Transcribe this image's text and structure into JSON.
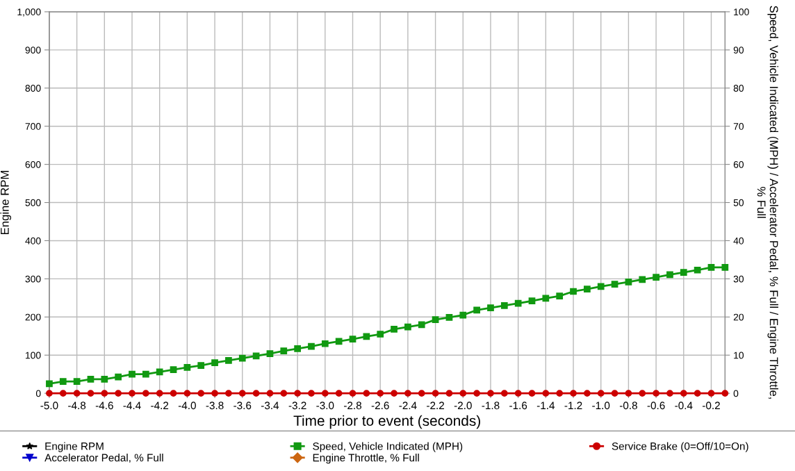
{
  "chart_data": {
    "type": "line",
    "xlabel": "Time prior to event (seconds)",
    "ylabel": "Engine RPM",
    "y2label": "Speed, Vehicle Indicated (MPH) / Accelerator Pedal, % Full / Engine Throttle, % Full",
    "x": [
      -5.0,
      -4.9,
      -4.8,
      -4.7,
      -4.6,
      -4.5,
      -4.4,
      -4.3,
      -4.2,
      -4.1,
      -4.0,
      -3.9,
      -3.8,
      -3.7,
      -3.6,
      -3.5,
      -3.4,
      -3.3,
      -3.2,
      -3.1,
      -3.0,
      -2.9,
      -2.8,
      -2.7,
      -2.6,
      -2.5,
      -2.4,
      -2.3,
      -2.2,
      -2.1,
      -2.0,
      -1.9,
      -1.8,
      -1.7,
      -1.6,
      -1.5,
      -1.4,
      -1.3,
      -1.2,
      -1.1,
      -1.0,
      -0.9,
      -0.8,
      -0.7,
      -0.6,
      -0.5,
      -0.4,
      -0.3,
      -0.2,
      -0.1
    ],
    "xlim": [
      -5.0,
      -0.1
    ],
    "xticks": [
      {
        "value": -5.0,
        "label": "-5.0"
      },
      {
        "value": -4.8,
        "label": "-4.8"
      },
      {
        "value": -4.6,
        "label": "-4.6"
      },
      {
        "value": -4.4,
        "label": "-4.4"
      },
      {
        "value": -4.2,
        "label": "-4.2"
      },
      {
        "value": -4.0,
        "label": "-4.0"
      },
      {
        "value": -3.8,
        "label": "-3.8"
      },
      {
        "value": -3.6,
        "label": "-3.6"
      },
      {
        "value": -3.4,
        "label": "-3.4"
      },
      {
        "value": -3.2,
        "label": "-3.2"
      },
      {
        "value": -3.0,
        "label": "-3.0"
      },
      {
        "value": -2.8,
        "label": "-2.8"
      },
      {
        "value": -2.6,
        "label": "-2.6"
      },
      {
        "value": -2.4,
        "label": "-2.4"
      },
      {
        "value": -2.2,
        "label": "-2.2"
      },
      {
        "value": -2.0,
        "label": "-2.0"
      },
      {
        "value": -1.8,
        "label": "-1.8"
      },
      {
        "value": -1.6,
        "label": "-1.6"
      },
      {
        "value": -1.4,
        "label": "-1.4"
      },
      {
        "value": -1.2,
        "label": "-1.2"
      },
      {
        "value": -1.0,
        "label": "-1.0"
      },
      {
        "value": -0.8,
        "label": "-0.8"
      },
      {
        "value": -0.6,
        "label": "-0.6"
      },
      {
        "value": -0.4,
        "label": "-0.4"
      },
      {
        "value": -0.2,
        "label": "-0.2"
      }
    ],
    "ylim": [
      0,
      1000
    ],
    "yticks": [
      0,
      100,
      200,
      300,
      400,
      500,
      600,
      700,
      800,
      900,
      {
        "value": 1000,
        "label": "1,000"
      }
    ],
    "y2lim": [
      0,
      100
    ],
    "y2ticks": [
      0,
      10,
      20,
      30,
      40,
      50,
      60,
      70,
      80,
      90,
      100
    ],
    "grid": true,
    "legend": "bottom",
    "series": [
      {
        "name": "Engine RPM",
        "color": "#000000",
        "marker": "star",
        "values": [
          null,
          null,
          null,
          null,
          null,
          null,
          null,
          null,
          null,
          null,
          null,
          null,
          null,
          null,
          null,
          null,
          null,
          null,
          null,
          null,
          null,
          null,
          null,
          null,
          null,
          null,
          null,
          null,
          null,
          null,
          null,
          null,
          null,
          null,
          null,
          null,
          null,
          null,
          null,
          null,
          null,
          null,
          null,
          null,
          null,
          null,
          null,
          null,
          null,
          null
        ]
      },
      {
        "name": "Accelerator Pedal, % Full",
        "color": "#0000cc",
        "marker": "triangle",
        "axis": "y2",
        "values": [
          null,
          null,
          null,
          null,
          null,
          null,
          null,
          null,
          null,
          null,
          null,
          null,
          null,
          null,
          null,
          null,
          null,
          null,
          null,
          null,
          null,
          null,
          null,
          null,
          null,
          null,
          null,
          null,
          null,
          null,
          null,
          null,
          null,
          null,
          null,
          null,
          null,
          null,
          null,
          null,
          null,
          null,
          null,
          null,
          null,
          null,
          null,
          null,
          null,
          null
        ]
      },
      {
        "name": "Speed, Vehicle Indicated (MPH)",
        "color": "#119911",
        "marker": "square",
        "axis": "y2",
        "values": [
          2.5,
          3.1,
          3.1,
          3.7,
          3.7,
          4.3,
          5.0,
          5.0,
          5.6,
          6.2,
          6.8,
          7.3,
          8.0,
          8.6,
          9.2,
          9.8,
          10.4,
          11.1,
          11.7,
          12.3,
          13.0,
          13.6,
          14.2,
          14.9,
          15.5,
          16.8,
          17.4,
          18.0,
          19.3,
          19.9,
          20.5,
          21.8,
          22.4,
          23.0,
          23.6,
          24.2,
          24.9,
          25.5,
          26.7,
          27.3,
          28.0,
          28.6,
          29.2,
          29.8,
          30.4,
          31.1,
          31.7,
          32.3,
          33.0,
          33.0
        ]
      },
      {
        "name": "Engine Throttle, % Full",
        "color": "#cc6611",
        "marker": "diamond",
        "axis": "y2",
        "values": [
          null,
          null,
          null,
          null,
          null,
          null,
          null,
          null,
          null,
          null,
          null,
          null,
          null,
          null,
          null,
          null,
          null,
          null,
          null,
          null,
          null,
          null,
          null,
          null,
          null,
          null,
          null,
          null,
          null,
          null,
          null,
          null,
          null,
          null,
          null,
          null,
          null,
          null,
          null,
          null,
          null,
          null,
          null,
          null,
          null,
          null,
          null,
          null,
          null,
          null
        ]
      },
      {
        "name": "Service Brake (0=Off/10=On)",
        "color": "#cc0000",
        "marker": "circle",
        "axis": "y2",
        "values": [
          0,
          0,
          0,
          0,
          0,
          0,
          0,
          0,
          0,
          0,
          0,
          0,
          0,
          0,
          0,
          0,
          0,
          0,
          0,
          0,
          0,
          0,
          0,
          0,
          0,
          0,
          0,
          0,
          0,
          0,
          0,
          0,
          0,
          0,
          0,
          0,
          0,
          0,
          0,
          0,
          0,
          0,
          0,
          0,
          0,
          0,
          0,
          0,
          0,
          0
        ]
      }
    ]
  }
}
